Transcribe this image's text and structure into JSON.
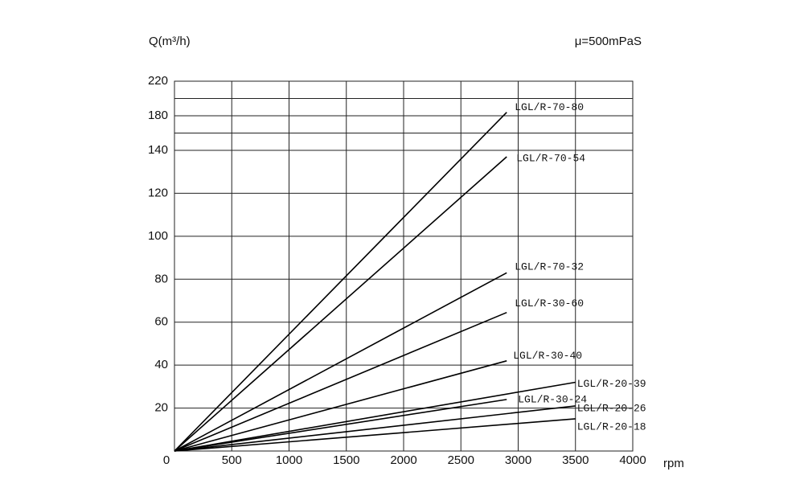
{
  "chart_data": {
    "type": "line",
    "y_label": "Q(m³/h)",
    "x_label": "rpm",
    "annotation": "μ=500mPaS",
    "xlim": [
      0,
      4000
    ],
    "xticks": [
      0,
      500,
      1000,
      1500,
      2000,
      2500,
      3000,
      3500,
      4000
    ],
    "ylim": [
      0,
      220
    ],
    "yticks": [
      20,
      40,
      60,
      80,
      100,
      120,
      140,
      180,
      220
    ],
    "ygrid": [
      160,
      200
    ],
    "grid": true,
    "series": [
      {
        "name": "LGL/R-70-80",
        "color": "#000000",
        "x": [
          0,
          2900
        ],
        "values": [
          0,
          184
        ]
      },
      {
        "name": "LGL/R-70-54",
        "color": "#000000",
        "x": [
          0,
          2900
        ],
        "values": [
          0,
          137
        ]
      },
      {
        "name": "LGL/R-70-32",
        "color": "#000000",
        "x": [
          0,
          2900
        ],
        "values": [
          0,
          83
        ]
      },
      {
        "name": "LGL/R-30-60",
        "color": "#000000",
        "x": [
          0,
          2900
        ],
        "values": [
          0,
          64.5
        ]
      },
      {
        "name": "LGL/R-30-40",
        "color": "#000000",
        "x": [
          0,
          2900
        ],
        "values": [
          0,
          42
        ]
      },
      {
        "name": "LGL/R-20-39",
        "color": "#000000",
        "x": [
          0,
          3500
        ],
        "values": [
          0,
          32
        ]
      },
      {
        "name": "LGL/R-30-24",
        "color": "#000000",
        "x": [
          0,
          2900
        ],
        "values": [
          0,
          24
        ]
      },
      {
        "name": "LGL/R-20-26",
        "color": "#000000",
        "x": [
          0,
          3500
        ],
        "values": [
          0,
          21
        ]
      },
      {
        "name": "LGL/R-20-18",
        "color": "#000000",
        "x": [
          0,
          3500
        ],
        "values": [
          0,
          15
        ]
      }
    ]
  }
}
